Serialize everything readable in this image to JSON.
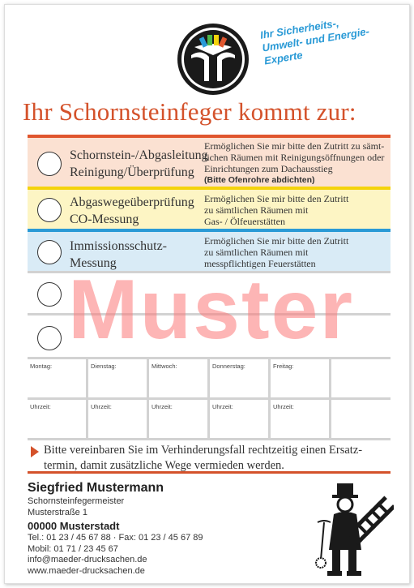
{
  "tagline": [
    "Ihr Sicherheits-,",
    "Umwelt- und Energie-",
    "Experte"
  ],
  "headline": "Ihr Schornsteinfeger kommt zur:",
  "services": [
    {
      "title": [
        "Schornstein-/Abgasleitung",
        "Reinigung/Überprüfung"
      ],
      "desc": [
        "Ermöglichen Sie mir bitte den Zutritt zu sämt-",
        "lichen Räumen mit Reinigungsöffnungen oder",
        "Einrichtungen zum Dachausstieg"
      ],
      "note": "(Bitte Ofenrohre abdichten)",
      "accent": "#e0562e"
    },
    {
      "title": [
        "Abgaswegeüberprüfung",
        "CO-Messung"
      ],
      "desc": [
        "Ermöglichen Sie mir bitte den Zutritt",
        "zu sämtlichen Räumen mit",
        "Gas- / Ölfeuerstätten"
      ],
      "accent": "#f4d30c"
    },
    {
      "title": [
        "Immissionsschutz-",
        "Messung"
      ],
      "desc": [
        "Ermöglichen Sie mir bitte den Zutritt",
        "zu sämtlichen Räumen mit",
        "messpflichtigen Feuerstätten"
      ],
      "accent": "#2a9ad6"
    }
  ],
  "watermark": "Muster",
  "schedule": {
    "days": [
      "Montag:",
      "Dienstag:",
      "Mittwoch:",
      "Donnerstag:",
      "Freitag:",
      ""
    ],
    "times": [
      "Uhrzeit:",
      "Uhrzeit:",
      "Uhrzeit:",
      "Uhrzeit:",
      "Uhrzeit:",
      ""
    ]
  },
  "notice": [
    "Bitte vereinbaren Sie im Verhinderungsfall rechtzeitig einen Ersatz-",
    "termin, damit zusätzliche Wege vermieden werden."
  ],
  "contact": {
    "name": "Siegfried Mustermann",
    "role": "Schornsteinfegermeister",
    "street": "Musterstraße 1",
    "city": "00000 Musterstadt",
    "phone": "Tel.: 01 23 / 45 67 88 · Fax: 01 23 / 45 67 89",
    "mobile": "Mobil: 01 71 / 23 45 67",
    "email": "info@maeder-drucksachen.de",
    "web": "www.maeder-drucksachen.de"
  },
  "colors": {
    "headline": "#d4522b",
    "tagline": "#2a9ad6",
    "watermark": "#fc7878"
  },
  "icons": [
    "guild-logo-icon",
    "chimney-sweep-icon"
  ]
}
